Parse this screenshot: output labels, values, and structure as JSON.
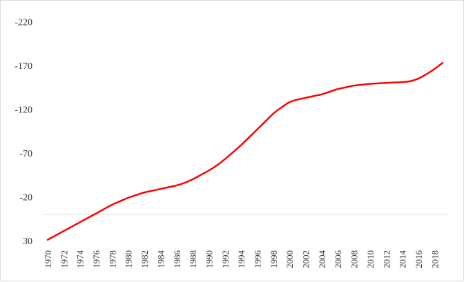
{
  "chart_data": {
    "type": "line",
    "x": [
      1970,
      1971,
      1972,
      1973,
      1974,
      1975,
      1976,
      1977,
      1978,
      1979,
      1980,
      1981,
      1982,
      1983,
      1984,
      1985,
      1986,
      1987,
      1988,
      1989,
      1990,
      1991,
      1992,
      1993,
      1994,
      1995,
      1996,
      1997,
      1998,
      1999,
      2000,
      2001,
      2002,
      2003,
      2004,
      2005,
      2006,
      2007,
      2008,
      2009,
      2010,
      2011,
      2012,
      2013,
      2014,
      2015,
      2016,
      2017,
      2018,
      2019
    ],
    "x_ticks": [
      "1970",
      "1972",
      "1974",
      "1976",
      "1978",
      "1980",
      "1982",
      "1984",
      "1986",
      "1988",
      "1990",
      "1992",
      "1994",
      "1996",
      "1998",
      "2000",
      "2002",
      "2004",
      "2006",
      "2008",
      "2010",
      "2012",
      "2014",
      "2016",
      "2018"
    ],
    "y_ticks": [
      "-220",
      "-170",
      "-120",
      "-70",
      "-20",
      "30"
    ],
    "y_tick_values": [
      -220,
      -170,
      -120,
      -70,
      -20,
      30
    ],
    "ylim": [
      30,
      -225
    ],
    "y_inverted": true,
    "series": [
      {
        "color": "#ff0000",
        "values": [
          29,
          24,
          19,
          14,
          9,
          4,
          -1,
          -6,
          -11,
          -15,
          -19,
          -22,
          -25,
          -27,
          -29,
          -31,
          -33,
          -36,
          -40,
          -45,
          -50,
          -56,
          -63,
          -71,
          -79,
          -88,
          -97,
          -106,
          -115,
          -122,
          -128,
          -131,
          -133,
          -135,
          -137,
          -140,
          -143,
          -145,
          -147,
          -148,
          -149,
          -149.5,
          -150,
          -150.5,
          -151,
          -152,
          -155,
          -160,
          -166,
          -173
        ]
      }
    ],
    "zero_line": 0,
    "grid": false,
    "legend": "none"
  }
}
